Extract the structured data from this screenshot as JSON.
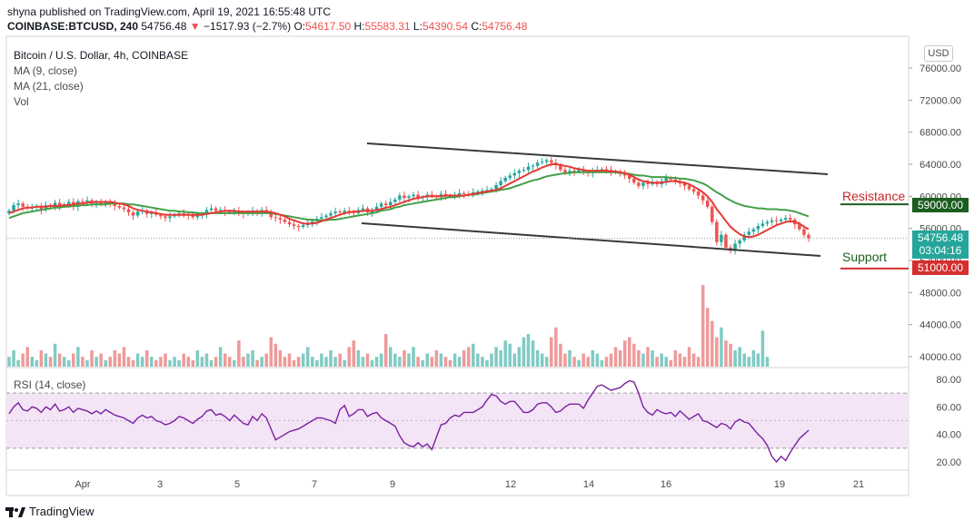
{
  "header": {
    "line1": "shyna published on TradingView.com, April 19, 2021 16:55:48 UTC",
    "symbol": "COINBASE:BTCUSD, 240",
    "last": "54756.48",
    "change_arrow": "▼",
    "change": "−1517.93 (−2.7%)",
    "o_label": "O:",
    "o_value": "54617.50",
    "h_label": "H:",
    "h_value": "55583.31",
    "l_label": "L:",
    "l_value": "54390.54",
    "c_label": "C:",
    "c_value": "54756.48"
  },
  "legend": {
    "title": "Bitcoin / U.S. Dollar, 4h, COINBASE",
    "ma9": "MA (9, close)",
    "ma21": "MA (21, close)",
    "vol": "Vol",
    "rsi": "RSI (14, close)"
  },
  "currency_badge": "USD",
  "annotations": {
    "resistance": "Resistance",
    "support": "Support",
    "resistance_price": "59000.00",
    "support_price": "51000.00",
    "last_price": "54756.48",
    "countdown": "03:04:16"
  },
  "colors": {
    "up": "#26a69a",
    "down": "#ef5350",
    "ma9": "#e53935",
    "ma21": "#43a047",
    "trendline": "#3a3a3a",
    "rsi_line": "#7b1fa2",
    "rsi_band": "#f3e5f5",
    "resistance": "#1b5e20",
    "support": "#d32f2f"
  },
  "brand": "TradingView",
  "chart_data": [
    {
      "type": "candlestick",
      "title": "Bitcoin / U.S. Dollar, 4h, COINBASE",
      "x_ticks": [
        "Apr",
        "3",
        "5",
        "7",
        "9",
        "12",
        "14",
        "16",
        "19",
        "21"
      ],
      "ylim": [
        38000,
        78000
      ],
      "y_ticks": [
        "76000.00",
        "72000.00",
        "68000.00",
        "64000.00",
        "60000.00",
        "56000.00",
        "52000.00",
        "48000.00",
        "44000.00",
        "40000.00"
      ],
      "close_series": [
        58200,
        58900,
        59100,
        58700,
        58500,
        58600,
        58800,
        58300,
        58900,
        58700,
        59200,
        58800,
        59000,
        59300,
        58700,
        59400,
        59300,
        59500,
        59100,
        59200,
        59000,
        59300,
        59100,
        58800,
        58600,
        58400,
        58000,
        57600,
        58100,
        58200,
        57800,
        57900,
        57700,
        57500,
        57300,
        57500,
        57700,
        57900,
        57800,
        57600,
        57400,
        57600,
        57800,
        58300,
        58500,
        58200,
        58300,
        58100,
        58000,
        58200,
        58000,
        57800,
        57900,
        58200,
        58000,
        58300,
        58100,
        57400,
        57300,
        57100,
        56800,
        56500,
        56300,
        56200,
        56400,
        56600,
        56900,
        57200,
        57400,
        57600,
        57900,
        58100,
        58000,
        58200,
        58100,
        57900,
        58300,
        58500,
        58000,
        58200,
        58700,
        59100,
        58900,
        59300,
        59600,
        60100,
        59800,
        60000,
        60200,
        59800,
        59900,
        60200,
        60000,
        59900,
        60300,
        60100,
        60000,
        60200,
        60400,
        60300,
        60200,
        60500,
        60600,
        60700,
        60800,
        60900,
        61400,
        61900,
        62300,
        62600,
        62900,
        63200,
        63300,
        63700,
        63800,
        64200,
        64300,
        64500,
        64200,
        63900,
        63300,
        63000,
        63200,
        63100,
        63300,
        63000,
        62900,
        63200,
        63300,
        63400,
        63300,
        63100,
        63000,
        62800,
        62600,
        62200,
        61700,
        61300,
        61700,
        61500,
        61800,
        61500,
        61900,
        62300,
        62100,
        61800,
        61600,
        61300,
        60900,
        60600,
        60100,
        59500,
        58700,
        56800,
        54300,
        55200,
        53600,
        53200,
        54100,
        54500,
        55200,
        55600,
        55900,
        56300,
        56600,
        56800,
        57000,
        56900,
        57100,
        57300,
        57100,
        56500,
        55900,
        55200,
        54756
      ],
      "ma9_series": [
        57900,
        58100,
        58300,
        58500,
        58600,
        58600,
        58700,
        58700,
        58700,
        58800,
        58800,
        58800,
        58900,
        58900,
        59000,
        59100,
        59100,
        59200,
        59300,
        59300,
        59300,
        59300,
        59300,
        59200,
        59100,
        59000,
        58800,
        58500,
        58300,
        58200,
        58100,
        58000,
        57900,
        57800,
        57700,
        57700,
        57700,
        57700,
        57700,
        57700,
        57700,
        57700,
        57700,
        57800,
        57900,
        58000,
        58100,
        58200,
        58200,
        58200,
        58100,
        58100,
        58100,
        58100,
        58100,
        58100,
        58100,
        58000,
        57900,
        57700,
        57500,
        57200,
        57000,
        56800,
        56600,
        56600,
        56600,
        56700,
        56900,
        57100,
        57300,
        57500,
        57700,
        57900,
        58000,
        58100,
        58100,
        58200,
        58200,
        58200,
        58300,
        58400,
        58600,
        58700,
        58900,
        59100,
        59300,
        59500,
        59700,
        59800,
        59900,
        60000,
        60000,
        60000,
        60000,
        60100,
        60100,
        60100,
        60100,
        60100,
        60200,
        60300,
        60400,
        60500,
        60600,
        60700,
        60800,
        61000,
        61300,
        61600,
        61900,
        62200,
        62500,
        62800,
        63100,
        63300,
        63600,
        63800,
        64000,
        64000,
        63900,
        63800,
        63700,
        63500,
        63400,
        63300,
        63200,
        63200,
        63200,
        63200,
        63200,
        63100,
        63100,
        63000,
        62900,
        62700,
        62400,
        62100,
        61900,
        61800,
        61700,
        61700,
        61700,
        61800,
        61900,
        61900,
        61800,
        61700,
        61500,
        61200,
        60900,
        60500,
        60000,
        59300,
        58400,
        57700,
        56900,
        56200,
        55700,
        55300,
        55000,
        54900,
        55000,
        55200,
        55500,
        55800,
        56100,
        56400,
        56600,
        56800,
        56900,
        56800,
        56600,
        56200,
        55900
      ],
      "ma21_series": [
        57300,
        57500,
        57700,
        57900,
        58000,
        58100,
        58200,
        58300,
        58400,
        58500,
        58600,
        58600,
        58700,
        58700,
        58800,
        58800,
        58900,
        58900,
        59000,
        59000,
        59000,
        59000,
        59100,
        59100,
        59100,
        59100,
        59000,
        59000,
        58900,
        58800,
        58700,
        58600,
        58500,
        58400,
        58300,
        58200,
        58200,
        58100,
        58100,
        58000,
        58000,
        57900,
        57900,
        57900,
        57900,
        57900,
        57900,
        57900,
        57900,
        57900,
        57900,
        57900,
        57900,
        57900,
        57900,
        57900,
        57900,
        57900,
        57800,
        57700,
        57600,
        57500,
        57400,
        57300,
        57200,
        57100,
        57100,
        57000,
        57000,
        57000,
        57100,
        57100,
        57200,
        57300,
        57400,
        57500,
        57600,
        57700,
        57800,
        57900,
        58000,
        58200,
        58300,
        58400,
        58600,
        58700,
        58900,
        59000,
        59100,
        59200,
        59300,
        59400,
        59500,
        59600,
        59700,
        59800,
        59900,
        59900,
        60000,
        60100,
        60200,
        60200,
        60300,
        60400,
        60500,
        60600,
        60700,
        60800,
        60900,
        61000,
        61200,
        61400,
        61600,
        61800,
        62000,
        62100,
        62300,
        62500,
        62600,
        62700,
        62800,
        62900,
        62900,
        63000,
        63000,
        63000,
        63000,
        63000,
        63000,
        63000,
        63000,
        63000,
        63000,
        62900,
        62900,
        62800,
        62700,
        62600,
        62600,
        62500,
        62400,
        62400,
        62400,
        62400,
        62300,
        62300,
        62200,
        62200,
        62100,
        62000,
        61800,
        61600,
        61300,
        60900,
        60500,
        60200,
        59800,
        59500,
        59200,
        59000,
        58800,
        58700,
        58600,
        58500,
        58500,
        58400,
        58400,
        58400,
        58300,
        58300,
        58200,
        58100,
        57900,
        57700,
        57500
      ],
      "volume_series": [
        3,
        5,
        2,
        4,
        6,
        3,
        2,
        5,
        4,
        3,
        7,
        4,
        3,
        2,
        4,
        6,
        3,
        2,
        5,
        3,
        4,
        2,
        3,
        5,
        4,
        6,
        3,
        2,
        4,
        3,
        5,
        3,
        2,
        3,
        4,
        2,
        3,
        2,
        4,
        3,
        2,
        5,
        3,
        4,
        2,
        3,
        6,
        4,
        3,
        2,
        8,
        3,
        4,
        5,
        2,
        3,
        4,
        9,
        7,
        5,
        3,
        4,
        2,
        3,
        4,
        6,
        3,
        2,
        4,
        3,
        5,
        3,
        4,
        2,
        6,
        8,
        5,
        3,
        4,
        2,
        3,
        4,
        10,
        6,
        4,
        3,
        5,
        4,
        6,
        3,
        2,
        4,
        3,
        5,
        4,
        3,
        2,
        4,
        3,
        5,
        6,
        7,
        4,
        3,
        2,
        4,
        6,
        5,
        8,
        7,
        4,
        6,
        9,
        10,
        8,
        5,
        4,
        3,
        9,
        12,
        7,
        4,
        5,
        3,
        2,
        4,
        3,
        5,
        4,
        2,
        3,
        4,
        6,
        5,
        8,
        9,
        7,
        5,
        4,
        6,
        5,
        3,
        4,
        3,
        2,
        5,
        4,
        3,
        6,
        4,
        3,
        25,
        18,
        14,
        9,
        12,
        8,
        7,
        5,
        6,
        4,
        3,
        5,
        4,
        11,
        3
      ]
    },
    {
      "type": "line",
      "title": "RSI (14, close)",
      "ylim": [
        15,
        85
      ],
      "y_ticks": [
        "80.00",
        "60.00",
        "40.00",
        "20.00"
      ],
      "band": [
        30,
        70
      ],
      "series": [
        {
          "name": "RSI (14, close)",
          "values": [
            55,
            60,
            63,
            58,
            57,
            60,
            59,
            56,
            60,
            58,
            62,
            57,
            58,
            60,
            56,
            59,
            58,
            57,
            55,
            57,
            55,
            58,
            56,
            54,
            53,
            52,
            50,
            48,
            52,
            54,
            52,
            53,
            50,
            49,
            47,
            48,
            50,
            53,
            52,
            50,
            48,
            51,
            53,
            57,
            58,
            54,
            55,
            53,
            50,
            54,
            51,
            48,
            47,
            53,
            50,
            55,
            52,
            44,
            36,
            38,
            40,
            42,
            43,
            44,
            46,
            48,
            50,
            52,
            52,
            51,
            50,
            48,
            58,
            61,
            53,
            55,
            58,
            58,
            53,
            55,
            56,
            52,
            50,
            48,
            46,
            39,
            34,
            32,
            31,
            34,
            31,
            33,
            29,
            38,
            47,
            48,
            52,
            54,
            53,
            56,
            56,
            56,
            58,
            60,
            65,
            69,
            68,
            64,
            62,
            64,
            64,
            60,
            56,
            56,
            58,
            62,
            63,
            63,
            60,
            56,
            57,
            60,
            62,
            62,
            62,
            59,
            65,
            70,
            75,
            76,
            74,
            72,
            73,
            74,
            77,
            79,
            78,
            70,
            60,
            56,
            54,
            58,
            56,
            55,
            56,
            53,
            57,
            54,
            51,
            53,
            55,
            50,
            49,
            47,
            45,
            48,
            47,
            44,
            49,
            51,
            49,
            48,
            44,
            40,
            37,
            32,
            24,
            20,
            24,
            21,
            27,
            32,
            37,
            40,
            43
          ]
        }
      ]
    }
  ]
}
